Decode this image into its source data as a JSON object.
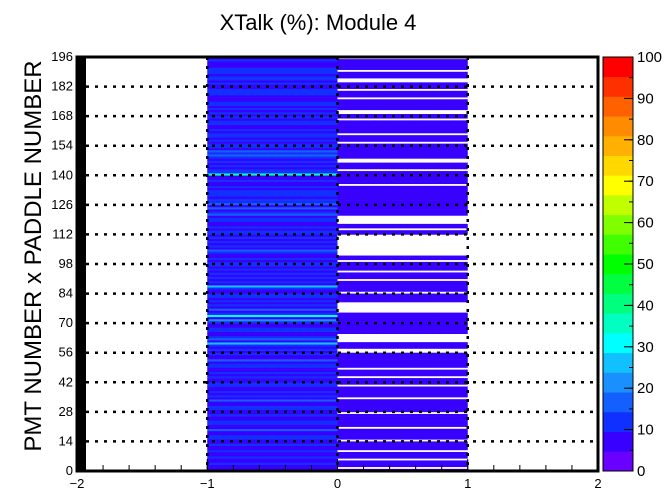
{
  "chart_data": {
    "type": "heatmap",
    "title": "XTalk (%): Module 4",
    "xlabel": "",
    "ylabel": "PMT NUMBER x PADDLE NUMBER",
    "xlim": [
      -2,
      2
    ],
    "ylim": [
      0,
      196
    ],
    "zlim": [
      0,
      100
    ],
    "x_ticks": [
      "−2",
      "−1",
      "0",
      "1",
      "2"
    ],
    "y_ticks": [
      "0",
      "14",
      "28",
      "42",
      "56",
      "70",
      "84",
      "98",
      "112",
      "126",
      "140",
      "154",
      "168",
      "182",
      "196"
    ],
    "z_ticks": [
      "0",
      "10",
      "20",
      "30",
      "40",
      "50",
      "60",
      "70",
      "80",
      "90",
      "100"
    ],
    "grid": "dotted",
    "palette": [
      "#6a00ff",
      "#3800ff",
      "#1030ff",
      "#1460ff",
      "#1a90ff",
      "#10c0ff",
      "#00ffff",
      "#00ffc0",
      "#00ff7f",
      "#00ff40",
      "#00ff00",
      "#40ff00",
      "#7fff00",
      "#c0ff00",
      "#ffff00",
      "#ffd800",
      "#ffb000",
      "#ff8c00",
      "#ff6000",
      "#ff3000",
      "#ff0000"
    ],
    "columns": [
      {
        "x_range": [
          -1,
          0
        ],
        "values": [
          6,
          8,
          7,
          12,
          9,
          6,
          14,
          8,
          7,
          11,
          6,
          9,
          13,
          7,
          8,
          10,
          12,
          6,
          9,
          15,
          8,
          7,
          13,
          10,
          6,
          9,
          11,
          8,
          7,
          12,
          14,
          9,
          6,
          16,
          8,
          10,
          7,
          12,
          9,
          6,
          14,
          11,
          8,
          7,
          10,
          9,
          13,
          6,
          8,
          11,
          12,
          7,
          15,
          9,
          6,
          10,
          8,
          14,
          7,
          12,
          28,
          9,
          16,
          11,
          8,
          6,
          13,
          10,
          7,
          9,
          12,
          24,
          8,
          30,
          10,
          7,
          15,
          9,
          12,
          6,
          11,
          8,
          14,
          10,
          7,
          9,
          13,
          26,
          8,
          11,
          6,
          10,
          9,
          12,
          7,
          14,
          8,
          11,
          13,
          6,
          10,
          9,
          7,
          12,
          15,
          8,
          10,
          6,
          13,
          9,
          11,
          7,
          12,
          14,
          8,
          10,
          9,
          6,
          13,
          11,
          7,
          16,
          12,
          9,
          15,
          8,
          18,
          10,
          14,
          7,
          12,
          13,
          11,
          9,
          10,
          6,
          8,
          12,
          7,
          9,
          35,
          11,
          14,
          8,
          10,
          9,
          13,
          7,
          12,
          15,
          11,
          16,
          8,
          13,
          10,
          9,
          14,
          7,
          12,
          11,
          8,
          10,
          6,
          9,
          13,
          12,
          7,
          10,
          8,
          11,
          9,
          14,
          7,
          10,
          12,
          8,
          9,
          6,
          11,
          13,
          10,
          8,
          7,
          12,
          9,
          11,
          14,
          8,
          10,
          12,
          11,
          9,
          7,
          8,
          10,
          9
        ]
      },
      {
        "x_range": [
          0,
          1
        ],
        "values": [
          5,
          -1,
          8,
          6,
          9,
          -1,
          7,
          8,
          6,
          -1,
          9,
          7,
          8,
          6,
          -1,
          7,
          9,
          8,
          6,
          9,
          -1,
          8,
          7,
          9,
          6,
          8,
          7,
          -1,
          9,
          8,
          6,
          7,
          9,
          8,
          -1,
          7,
          6,
          8,
          9,
          7,
          -1,
          8,
          9,
          7,
          -1,
          6,
          8,
          7,
          -1,
          9,
          8,
          7,
          6,
          8,
          9,
          7,
          -1,
          -1,
          8,
          6,
          9,
          -1,
          -1,
          -1,
          -1,
          7,
          8,
          9,
          8,
          7,
          6,
          9,
          8,
          7,
          8,
          -1,
          -1,
          -1,
          -1,
          -1,
          8,
          7,
          9,
          8,
          -1,
          7,
          6,
          8,
          9,
          8,
          -1,
          7,
          9,
          8,
          -1,
          6,
          7,
          9,
          8,
          -1,
          7,
          8,
          -1,
          -1,
          -1,
          -1,
          -1,
          -1,
          -1,
          -1,
          -1,
          -1,
          8,
          7,
          -1,
          9,
          8,
          -1,
          -1,
          -1,
          -1,
          8,
          7,
          9,
          6,
          8,
          7,
          9,
          8,
          7,
          6,
          8,
          9,
          7,
          8,
          -1,
          8,
          7,
          6,
          8,
          9,
          7,
          -1,
          8,
          9,
          7,
          -1,
          -1,
          8,
          7,
          6,
          8,
          9,
          7,
          8,
          -1,
          9,
          7,
          8,
          -1,
          6,
          8,
          7,
          9,
          8,
          6,
          -1,
          7,
          8,
          -1,
          -1,
          7,
          8,
          9,
          6,
          8,
          -1,
          7,
          9,
          8,
          -1,
          8,
          7,
          9,
          -1,
          -1,
          8,
          9,
          7,
          -1,
          8,
          6,
          9,
          7,
          8,
          -1,
          -1,
          -1,
          -1,
          -1,
          -1
        ]
      }
    ]
  }
}
